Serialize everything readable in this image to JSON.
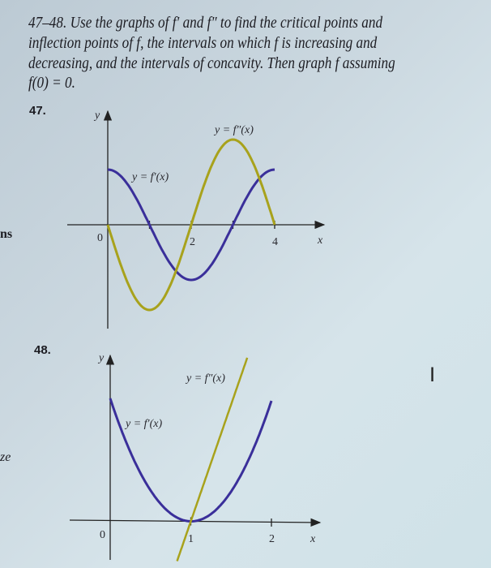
{
  "problem": {
    "lines": [
      "47–48. Use the graphs of f′ and f″ to find the critical points and",
      "inflection points of f, the intervals on which f is increasing and",
      "decreasing, and the intervals of concavity. Then graph f assuming",
      "f(0) = 0."
    ]
  },
  "margin": {
    "top": "ns",
    "bottom": "ze"
  },
  "colors": {
    "f_prime": "#3a2f9a",
    "f_double_prime": "#a8a21c",
    "axis": "#222222"
  },
  "chart_data": [
    {
      "number": "47.",
      "type": "line",
      "xlabel": "x",
      "ylabel": "y",
      "origin_label": "0",
      "xticks": [
        1,
        2,
        3,
        4
      ],
      "xtick_labels": [
        "",
        "2",
        "",
        "4"
      ],
      "xlim": [
        0,
        4
      ],
      "series": [
        {
          "name": "y = f′(x)",
          "shape": "cosine",
          "x": [
            0,
            1,
            2,
            3,
            4
          ],
          "y": [
            1,
            0,
            -1,
            0,
            1
          ]
        },
        {
          "name": "y = f″(x)",
          "shape": "negative sine",
          "x": [
            0,
            1,
            2,
            3,
            4
          ],
          "y": [
            0,
            -1,
            0,
            1,
            0
          ]
        }
      ]
    },
    {
      "number": "48.",
      "type": "line",
      "xlabel": "x",
      "ylabel": "y",
      "origin_label": "0",
      "xticks": [
        1,
        2
      ],
      "xtick_labels": [
        "1",
        "2"
      ],
      "xlim": [
        0,
        2
      ],
      "series": [
        {
          "name": "y = f′(x)",
          "shape": "parabola",
          "x": [
            0,
            1,
            2
          ],
          "y": [
            1,
            0,
            1
          ]
        },
        {
          "name": "y = f″(x)",
          "shape": "line",
          "x": [
            0.85,
            1,
            1.7
          ],
          "y": [
            -0.33,
            0,
            1.33
          ]
        }
      ]
    }
  ],
  "cursor": "I"
}
